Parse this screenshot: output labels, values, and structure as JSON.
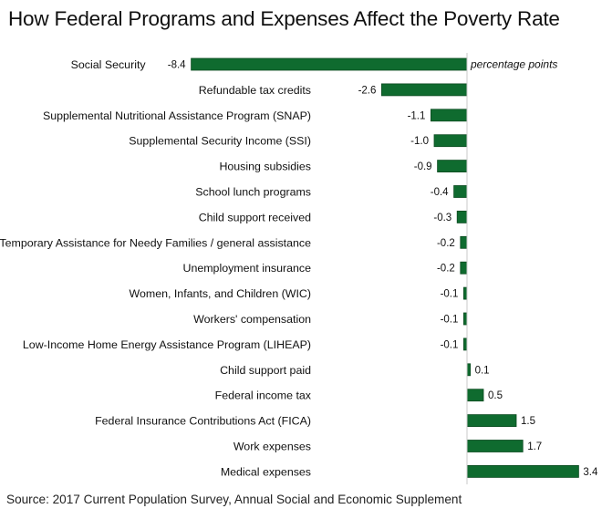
{
  "chart_data": {
    "type": "bar",
    "orientation": "horizontal",
    "title": "How Federal Programs and Expenses Affect the Poverty Rate",
    "unit_label": "percentage points",
    "source": "Source: 2017 Current Population Survey, Annual Social and Economic Supplement",
    "xlabel": "",
    "ylabel": "",
    "xlim": [
      -8.4,
      3.4
    ],
    "grid": false,
    "legend": "none",
    "bar_color": "#0f6b2f",
    "categories": [
      "Social Security",
      "Refundable tax credits",
      "Supplemental Nutritional Assistance Program (SNAP)",
      "Supplemental Security Income (SSI)",
      "Housing subsidies",
      "School lunch programs",
      "Child support received",
      "Temporary Assistance for Needy Families / general assistance",
      "Unemployment insurance",
      "Women, Infants, and Children (WIC)",
      "Workers' compensation",
      "Low-Income Home Energy Assistance Program (LIHEAP)",
      "Child support paid",
      "Federal income tax",
      "Federal Insurance Contributions Act (FICA)",
      "Work expenses",
      "Medical expenses"
    ],
    "values": [
      -8.4,
      -2.6,
      -1.1,
      -1.0,
      -0.9,
      -0.4,
      -0.3,
      -0.2,
      -0.2,
      -0.1,
      -0.1,
      -0.1,
      0.1,
      0.5,
      1.5,
      1.7,
      3.4
    ],
    "value_labels": [
      "-8.4",
      "-2.6",
      "-1.1",
      "-1.0",
      "-0.9",
      "-0.4",
      "-0.3",
      "-0.2",
      "-0.2",
      "-0.1",
      "-0.1",
      "-0.1",
      "0.1",
      "0.5",
      "1.5",
      "1.7",
      "3.4"
    ]
  }
}
